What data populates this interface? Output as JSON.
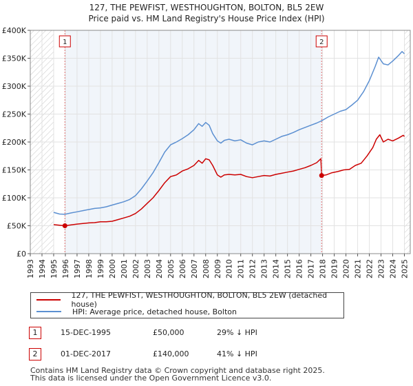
{
  "chart_data": {
    "type": "line",
    "title": "127, THE PEWFIST, WESTHOUGHTON, BOLTON, BL5 2EW",
    "subtitle": "Price paid vs. HM Land Registry's House Price Index (HPI)",
    "xlim": [
      1993,
      2025
    ],
    "ylim": [
      0,
      400000
    ],
    "x_ticks": [
      "1993",
      "1994",
      "1995",
      "1996",
      "1997",
      "1998",
      "1999",
      "2000",
      "2001",
      "2002",
      "2003",
      "2004",
      "2005",
      "2006",
      "2007",
      "2008",
      "2009",
      "2010",
      "2011",
      "2012",
      "2013",
      "2014",
      "2015",
      "2016",
      "2017",
      "2018",
      "2019",
      "2020",
      "2021",
      "2022",
      "2023",
      "2024",
      "2025"
    ],
    "y_ticks": [
      {
        "value": 0,
        "label": "£0"
      },
      {
        "value": 50000,
        "label": "£50K"
      },
      {
        "value": 100000,
        "label": "£100K"
      },
      {
        "value": 150000,
        "label": "£150K"
      },
      {
        "value": 200000,
        "label": "£200K"
      },
      {
        "value": 250000,
        "label": "£250K"
      },
      {
        "value": 300000,
        "label": "£300K"
      },
      {
        "value": 350000,
        "label": "£350K"
      },
      {
        "value": 400000,
        "label": "£400K"
      }
    ],
    "hatched_ranges": [
      [
        1993,
        1995.0
      ],
      [
        2025.0,
        2025.5
      ]
    ],
    "shaded_range": [
      1995.96,
      2017.92
    ],
    "series": [
      {
        "name": "127, THE PEWFIST, WESTHOUGHTON, BOLTON, BL5 2EW (detached house)",
        "color": "#cc0000",
        "points": [
          [
            1995.0,
            52000
          ],
          [
            1995.5,
            51000
          ],
          [
            1995.96,
            50000
          ],
          [
            1996.5,
            51500
          ],
          [
            1997,
            53000
          ],
          [
            1997.5,
            54000
          ],
          [
            1998,
            55000
          ],
          [
            1998.5,
            55500
          ],
          [
            1999,
            57000
          ],
          [
            1999.5,
            57000
          ],
          [
            2000,
            58000
          ],
          [
            2000.5,
            61000
          ],
          [
            2001,
            64000
          ],
          [
            2001.5,
            67000
          ],
          [
            2002,
            72000
          ],
          [
            2002.5,
            80000
          ],
          [
            2003,
            90000
          ],
          [
            2003.5,
            100000
          ],
          [
            2004,
            113000
          ],
          [
            2004.5,
            127000
          ],
          [
            2005,
            138000
          ],
          [
            2005.5,
            141000
          ],
          [
            2006,
            148000
          ],
          [
            2006.5,
            152000
          ],
          [
            2007,
            158000
          ],
          [
            2007.4,
            167000
          ],
          [
            2007.7,
            162000
          ],
          [
            2008,
            170000
          ],
          [
            2008.3,
            168000
          ],
          [
            2008.6,
            158000
          ],
          [
            2009,
            141000
          ],
          [
            2009.3,
            137000
          ],
          [
            2009.6,
            141000
          ],
          [
            2010,
            142000
          ],
          [
            2010.5,
            141000
          ],
          [
            2011,
            142000
          ],
          [
            2011.5,
            138000
          ],
          [
            2012,
            136000
          ],
          [
            2012.5,
            138000
          ],
          [
            2013,
            140000
          ],
          [
            2013.5,
            139000
          ],
          [
            2014,
            142000
          ],
          [
            2014.5,
            144000
          ],
          [
            2015,
            146000
          ],
          [
            2015.5,
            148000
          ],
          [
            2016,
            151000
          ],
          [
            2016.5,
            154000
          ],
          [
            2017,
            158000
          ],
          [
            2017.5,
            163000
          ],
          [
            2017.85,
            170000
          ],
          [
            2017.92,
            140000
          ],
          [
            2018.3,
            141000
          ],
          [
            2018.8,
            145000
          ],
          [
            2019.3,
            147000
          ],
          [
            2019.8,
            150000
          ],
          [
            2020.3,
            151000
          ],
          [
            2020.8,
            158000
          ],
          [
            2021.3,
            162000
          ],
          [
            2021.8,
            175000
          ],
          [
            2022.3,
            190000
          ],
          [
            2022.6,
            205000
          ],
          [
            2022.9,
            213000
          ],
          [
            2023.2,
            200000
          ],
          [
            2023.6,
            205000
          ],
          [
            2024.0,
            202000
          ],
          [
            2024.5,
            207000
          ],
          [
            2024.9,
            212000
          ],
          [
            2025.0,
            210000
          ]
        ]
      },
      {
        "name": "HPI: Average price, detached house, Bolton",
        "color": "#5b8fd1",
        "points": [
          [
            1995.0,
            74000
          ],
          [
            1995.5,
            71000
          ],
          [
            1995.96,
            70500
          ],
          [
            1996.5,
            73000
          ],
          [
            1997,
            75000
          ],
          [
            1997.5,
            77000
          ],
          [
            1998,
            79000
          ],
          [
            1998.5,
            81000
          ],
          [
            1999,
            82000
          ],
          [
            1999.5,
            84000
          ],
          [
            2000,
            87000
          ],
          [
            2000.5,
            90000
          ],
          [
            2001,
            93000
          ],
          [
            2001.5,
            97000
          ],
          [
            2002,
            104000
          ],
          [
            2002.5,
            116000
          ],
          [
            2003,
            130000
          ],
          [
            2003.5,
            145000
          ],
          [
            2004,
            163000
          ],
          [
            2004.5,
            182000
          ],
          [
            2005,
            195000
          ],
          [
            2005.5,
            200000
          ],
          [
            2006,
            206000
          ],
          [
            2006.5,
            213000
          ],
          [
            2007,
            222000
          ],
          [
            2007.4,
            233000
          ],
          [
            2007.7,
            228000
          ],
          [
            2008,
            235000
          ],
          [
            2008.3,
            230000
          ],
          [
            2008.6,
            215000
          ],
          [
            2009,
            202000
          ],
          [
            2009.3,
            198000
          ],
          [
            2009.6,
            203000
          ],
          [
            2010,
            205000
          ],
          [
            2010.5,
            202000
          ],
          [
            2011,
            204000
          ],
          [
            2011.5,
            198000
          ],
          [
            2012,
            195000
          ],
          [
            2012.5,
            200000
          ],
          [
            2013,
            202000
          ],
          [
            2013.5,
            200000
          ],
          [
            2014,
            205000
          ],
          [
            2014.5,
            210000
          ],
          [
            2015,
            213000
          ],
          [
            2015.5,
            217000
          ],
          [
            2016,
            222000
          ],
          [
            2016.5,
            226000
          ],
          [
            2017,
            230000
          ],
          [
            2017.5,
            234000
          ],
          [
            2017.92,
            238000
          ],
          [
            2018.5,
            245000
          ],
          [
            2019,
            250000
          ],
          [
            2019.5,
            255000
          ],
          [
            2020,
            258000
          ],
          [
            2020.5,
            266000
          ],
          [
            2021,
            275000
          ],
          [
            2021.5,
            290000
          ],
          [
            2022,
            310000
          ],
          [
            2022.5,
            335000
          ],
          [
            2022.8,
            352000
          ],
          [
            2023.2,
            340000
          ],
          [
            2023.6,
            338000
          ],
          [
            2024,
            345000
          ],
          [
            2024.5,
            355000
          ],
          [
            2024.8,
            362000
          ],
          [
            2025.0,
            358000
          ]
        ]
      }
    ],
    "annotations": [
      {
        "label": "1",
        "x": 1995.96,
        "price": 50000
      },
      {
        "label": "2",
        "x": 2017.92,
        "price": 140000
      }
    ]
  },
  "legend": {
    "property_label": "127, THE PEWFIST, WESTHOUGHTON, BOLTON, BL5 2EW (detached house)",
    "hpi_label": "HPI: Average price, detached house, Bolton"
  },
  "transactions": [
    {
      "num": "1",
      "date": "15-DEC-1995",
      "price": "£50,000",
      "hpi": "29% ↓ HPI"
    },
    {
      "num": "2",
      "date": "01-DEC-2017",
      "price": "£140,000",
      "hpi": "41% ↓ HPI"
    }
  ],
  "footer": {
    "line1": "Contains HM Land Registry data © Crown copyright and database right 2025.",
    "line2": "This data is licensed under the Open Government Licence v3.0."
  }
}
